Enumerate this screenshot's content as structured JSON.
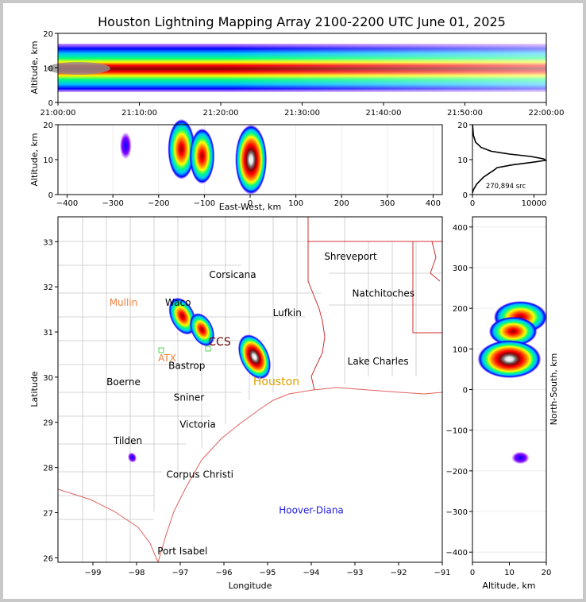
{
  "title": "Houston Lightning Mapping Array 2100-2200 UTC June 01, 2025",
  "colors": {
    "frame_border": "#c8c8c8",
    "state_borders": "#d03030",
    "county_lines": "#c8c8c8",
    "coastline": "#e06060",
    "hoover_label": "#2020e0",
    "station_labels": "#f08040",
    "houston_label": "#e0a000",
    "station_marker": "#50d050",
    "density_scale": [
      "#8000ff",
      "#0000ff",
      "#00c0ff",
      "#00ff80",
      "#ffff00",
      "#ff8000",
      "#ff0000",
      "#8b0000",
      "#ffffff"
    ]
  },
  "chart_data": [
    {
      "id": "altitude_vs_time",
      "type": "heatmap",
      "ylabel": "Altitude, km",
      "ylim": [
        0,
        20
      ],
      "yticks": [
        "0",
        "10",
        "20"
      ],
      "xticks": [
        "21:00:00",
        "21:10:00",
        "21:20:00",
        "21:30:00",
        "21:40:00",
        "21:50:00",
        "22:00:00"
      ],
      "band": {
        "min_km": 2,
        "max_km": 16,
        "peak_km": 10
      }
    },
    {
      "id": "altitude_vs_ew",
      "type": "heatmap",
      "xlabel": "East-West, km",
      "ylabel": "Altitude, km",
      "xlim": [
        -420,
        420
      ],
      "ylim": [
        0,
        20
      ],
      "xticks": [
        "−400",
        "−300",
        "−200",
        "−100",
        "0",
        "100",
        "200",
        "300",
        "400"
      ],
      "yticks": [
        "0",
        "10",
        "20"
      ],
      "cells": [
        {
          "x": -150,
          "alt": 13,
          "intensity": 0.8
        },
        {
          "x": -105,
          "alt": 11,
          "intensity": 0.7
        },
        {
          "x": 2,
          "alt": 10,
          "intensity": 1.0
        },
        {
          "x": -272,
          "alt": 14,
          "intensity": 0.1
        }
      ]
    },
    {
      "id": "source_histogram",
      "type": "line",
      "annotation": "270,894 src",
      "xlim": [
        0,
        12000
      ],
      "ylim": [
        0,
        20
      ],
      "xticks": [
        "0",
        "10000"
      ],
      "yticks": [
        "0",
        "10",
        "20"
      ],
      "profile": [
        [
          0,
          0.5
        ],
        [
          200,
          1.5
        ],
        [
          700,
          3
        ],
        [
          1800,
          5
        ],
        [
          3500,
          7
        ],
        [
          4000,
          7.7
        ],
        [
          6500,
          8.5
        ],
        [
          10000,
          9.3
        ],
        [
          11900,
          9.8
        ],
        [
          11600,
          10.2
        ],
        [
          9500,
          10.9
        ],
        [
          6000,
          11.6
        ],
        [
          3000,
          12.4
        ],
        [
          1400,
          13.5
        ],
        [
          500,
          15
        ],
        [
          150,
          17
        ],
        [
          30,
          20
        ]
      ]
    },
    {
      "id": "plan_view",
      "type": "heatmap",
      "xlabel": "Longitude",
      "ylabel": "Latitude",
      "xlim": [
        -99.8,
        -91.0
      ],
      "ylim": [
        25.9,
        33.55
      ],
      "xticks": [
        "−99",
        "−98",
        "−97",
        "−96",
        "−95",
        "−94",
        "−93",
        "−92",
        "−91"
      ],
      "yticks": [
        "26",
        "27",
        "28",
        "29",
        "30",
        "31",
        "32",
        "33"
      ],
      "cells": [
        {
          "lon": -96.95,
          "lat": 31.35,
          "intensity": 0.8
        },
        {
          "lon": -96.5,
          "lat": 31.05,
          "intensity": 0.7
        },
        {
          "lon": -95.3,
          "lat": 30.45,
          "intensity": 1.0
        },
        {
          "lon": -98.1,
          "lat": 28.22,
          "intensity": 0.1
        }
      ],
      "place_labels": [
        {
          "text": "Shreveport",
          "lon": -93.1,
          "lat": 32.6
        },
        {
          "text": "Corsicana",
          "lon": -95.8,
          "lat": 32.2
        },
        {
          "text": "Natchitoches",
          "lon": -92.35,
          "lat": 31.78
        },
        {
          "text": "Mullin",
          "lon": -98.3,
          "lat": 31.58
        },
        {
          "text": "Waco",
          "lon": -97.05,
          "lat": 31.58
        },
        {
          "text": "Lufkin",
          "lon": -94.55,
          "lat": 31.35
        },
        {
          "text": "CCS",
          "lon": -96.1,
          "lat": 30.7
        },
        {
          "text": "ATX",
          "lon": -97.3,
          "lat": 30.35
        },
        {
          "text": "Bastrop",
          "lon": -96.85,
          "lat": 30.18
        },
        {
          "text": "Lake Charles",
          "lon": -92.47,
          "lat": 30.28
        },
        {
          "text": "Boerne",
          "lon": -98.3,
          "lat": 29.82
        },
        {
          "text": "Houston",
          "lon": -94.8,
          "lat": 29.82
        },
        {
          "text": "Sniner",
          "lon": -96.8,
          "lat": 29.48
        },
        {
          "text": "Victoria",
          "lon": -96.6,
          "lat": 28.88
        },
        {
          "text": "Tilden",
          "lon": -98.2,
          "lat": 28.52
        },
        {
          "text": "Corpus Christi",
          "lon": -96.55,
          "lat": 27.77
        },
        {
          "text": "Hoover-Diana",
          "lon": -94.0,
          "lat": 26.98
        },
        {
          "text": "Port Isabel",
          "lon": -96.95,
          "lat": 26.08
        }
      ]
    },
    {
      "id": "altitude_vs_ns",
      "type": "heatmap",
      "xlabel": "Altitude, km",
      "ylabel": "North-South, km",
      "xlim": [
        0,
        20
      ],
      "ylim": [
        -425,
        425
      ],
      "xticks": [
        "0",
        "10",
        "20"
      ],
      "yticks": [
        "−400",
        "−300",
        "−200",
        "−100",
        "0",
        "100",
        "200",
        "300",
        "400"
      ],
      "cells": [
        {
          "alt": 13,
          "y": 178,
          "intensity": 0.8
        },
        {
          "alt": 11,
          "y": 143,
          "intensity": 0.7
        },
        {
          "alt": 10,
          "y": 75,
          "intensity": 1.0
        },
        {
          "alt": 13,
          "y": -168,
          "intensity": 0.1
        }
      ]
    }
  ]
}
